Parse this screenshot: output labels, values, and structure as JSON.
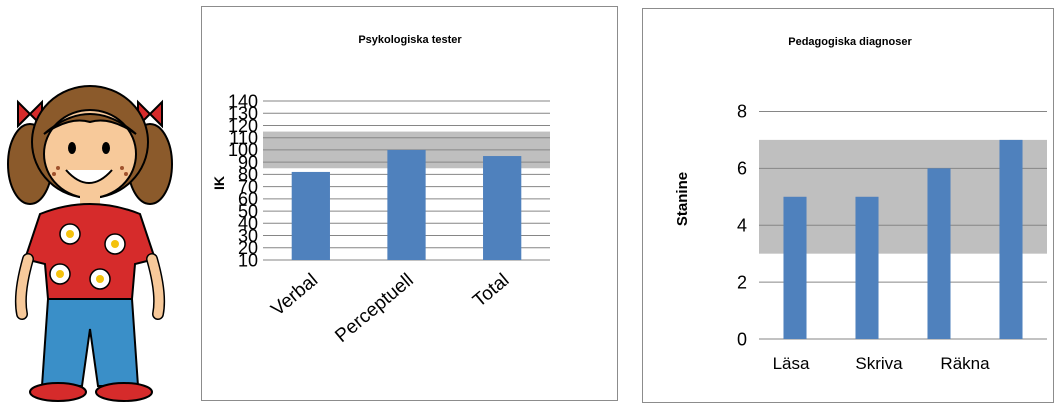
{
  "chart_data": [
    {
      "type": "bar",
      "title": "Psykologiska tester",
      "ylabel": "IK",
      "xlabel": "",
      "categories": [
        "Verbal",
        "Perceptuell",
        "Total"
      ],
      "values": [
        82,
        100,
        95
      ],
      "ylim": [
        10,
        140
      ],
      "yticks": [
        10,
        20,
        30,
        40,
        50,
        60,
        70,
        80,
        90,
        100,
        110,
        120,
        130,
        140
      ],
      "grid": true,
      "legend": "none",
      "normal_band": [
        85,
        115
      ],
      "bar_color": "#4f81bd",
      "band_color": "#bfbfbf"
    },
    {
      "type": "bar",
      "title": "Pedagogiska diagnoser",
      "ylabel": "Stanine",
      "xlabel": "",
      "categories": [
        "Läsa",
        "Skriva",
        "Räkna",
        ""
      ],
      "values": [
        5,
        5,
        6,
        7
      ],
      "ylim": [
        0,
        9
      ],
      "yticks": [
        0,
        2,
        4,
        6,
        8
      ],
      "grid": true,
      "legend": "none",
      "normal_band": [
        3,
        7
      ],
      "bar_color": "#4f81bd",
      "band_color": "#bfbfbf"
    }
  ]
}
